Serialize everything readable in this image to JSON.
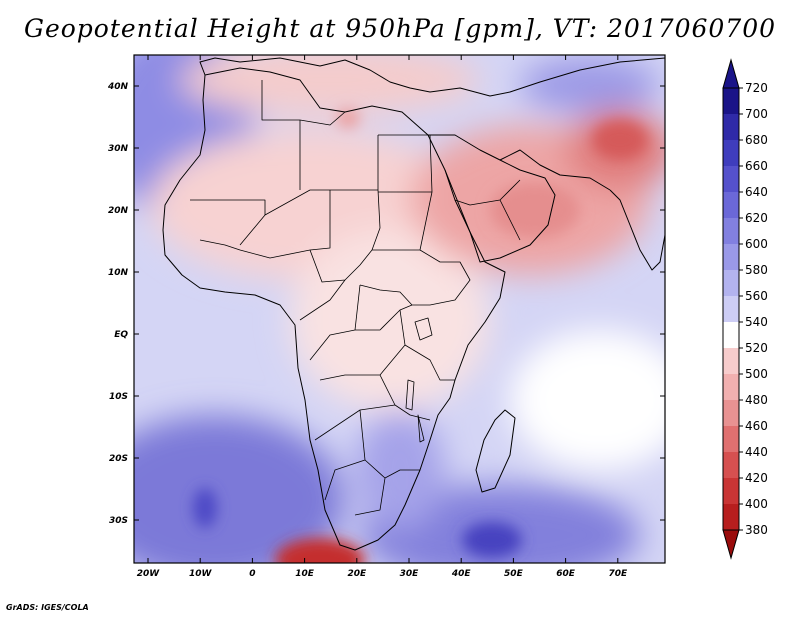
{
  "title": "Geopotential Height at 950hPa [gpm], VT: 2017060700",
  "footer": "GrADS: IGES/COLA",
  "map": {
    "variable": "Geopotential Height",
    "level": "950hPa",
    "units": "gpm",
    "valid_time": "2017060700",
    "lon_labels": [
      "20W",
      "10W",
      "0",
      "10E",
      "20E",
      "30E",
      "40E",
      "50E",
      "60E",
      "70E"
    ],
    "lat_labels": [
      "40N",
      "30N",
      "20N",
      "10N",
      "EQ",
      "10S",
      "20S",
      "30S"
    ]
  },
  "colorbar": {
    "levels": [
      "720",
      "700",
      "680",
      "660",
      "640",
      "620",
      "600",
      "580",
      "560",
      "540",
      "520",
      "500",
      "480",
      "460",
      "440",
      "420",
      "400",
      "380"
    ],
    "colors": [
      "#1a1488",
      "#2f2aa8",
      "#3f3dbd",
      "#5551cc",
      "#6b68d8",
      "#8280e0",
      "#9a99e8",
      "#b3b3ef",
      "#cdcdf5",
      "#ffffff",
      "#f7cccc",
      "#f1b0b0",
      "#e89292",
      "#e07070",
      "#d65050",
      "#c93535",
      "#b71e1e",
      "#9a0c0c"
    ]
  }
}
